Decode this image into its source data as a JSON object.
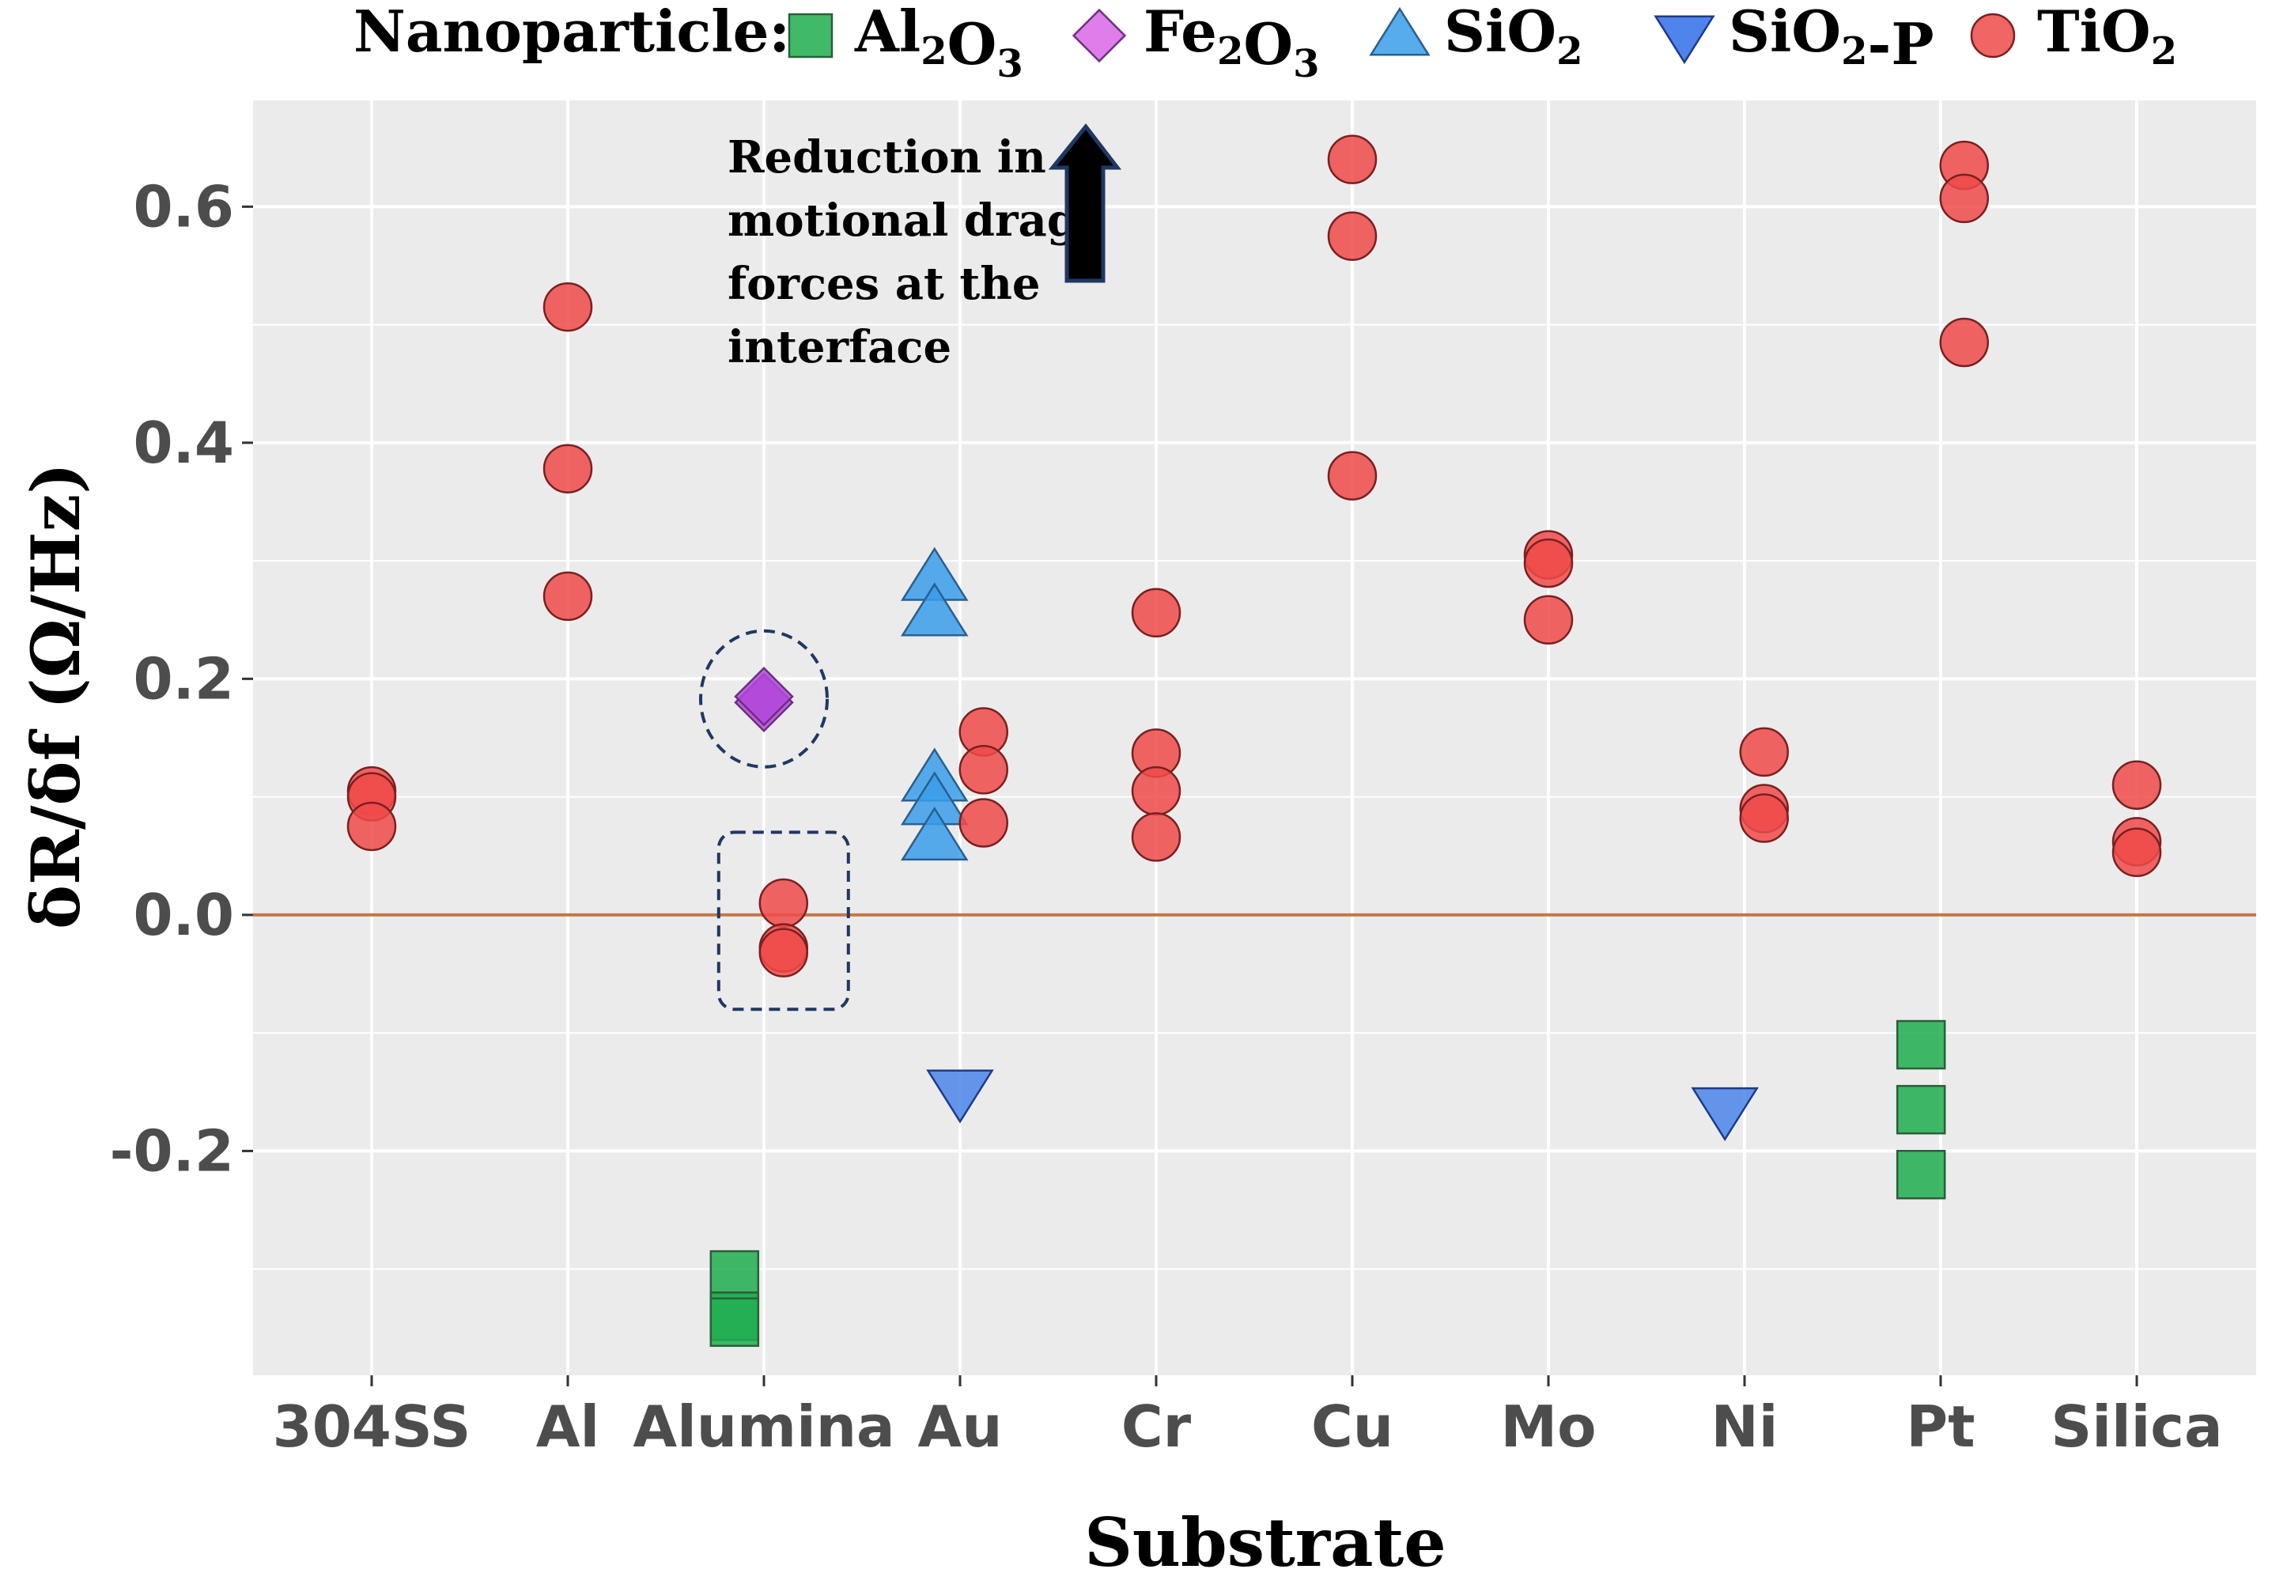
{
  "chart_data": {
    "type": "scatter",
    "title": "",
    "xlabel": "Substrate",
    "ylabel": "δR/δf  (Ω/Hz)",
    "ylim": [
      -0.39,
      0.69
    ],
    "yticks": [
      -0.2,
      0.0,
      0.2,
      0.4,
      0.6
    ],
    "ytick_labels": [
      "-0.2",
      "0.0",
      "0.2",
      "0.4",
      "0.6"
    ],
    "categories": [
      "304SS",
      "Al",
      "Alumina",
      "Au",
      "Cr",
      "Cu",
      "Mo",
      "Ni",
      "Pt",
      "Silica"
    ],
    "grid": true,
    "reference_line_y": 0.0,
    "legend": {
      "title": "Nanoparticle:",
      "position": "top",
      "entries": [
        {
          "name": "Al2O3",
          "base": "Al",
          "sub1": "2",
          "mid": "O",
          "sub2": "3",
          "tail": "",
          "shape": "square",
          "color": "#1fae4f"
        },
        {
          "name": "Fe2O3",
          "base": "Fe",
          "sub1": "2",
          "mid": "O",
          "sub2": "3",
          "tail": "",
          "shape": "diamond",
          "color": "#d966e8"
        },
        {
          "name": "SiO2",
          "base": "SiO",
          "sub1": "2",
          "mid": "",
          "sub2": "",
          "tail": "",
          "shape": "triangle-up",
          "color": "#3a9eea"
        },
        {
          "name": "SiO2-P",
          "base": "SiO",
          "sub1": "2",
          "mid": "",
          "sub2": "",
          "tail": "-P",
          "shape": "triangle-down",
          "color": "#2f6fe8"
        },
        {
          "name": "TiO2",
          "base": "TiO",
          "sub1": "2",
          "mid": "",
          "sub2": "",
          "tail": "",
          "shape": "circle",
          "color": "#f04a4a"
        }
      ]
    },
    "series": [
      {
        "name": "Al2O3",
        "shape": "square",
        "color": "#1fae4f",
        "points": [
          {
            "x": "Alumina",
            "offset": -0.15,
            "y": -0.305
          },
          {
            "x": "Alumina",
            "offset": -0.15,
            "y": -0.34
          },
          {
            "x": "Alumina",
            "offset": -0.15,
            "y": -0.345
          },
          {
            "x": "Pt",
            "offset": -0.1,
            "y": -0.11
          },
          {
            "x": "Pt",
            "offset": -0.1,
            "y": -0.165
          },
          {
            "x": "Pt",
            "offset": -0.1,
            "y": -0.22
          }
        ]
      },
      {
        "name": "Fe2O3",
        "shape": "diamond",
        "color": "#b347d9",
        "points": [
          {
            "x": "Alumina",
            "offset": 0.0,
            "y": 0.18
          },
          {
            "x": "Alumina",
            "offset": 0.0,
            "y": 0.185
          }
        ]
      },
      {
        "name": "SiO2",
        "shape": "triangle-up",
        "color": "#3a9eea",
        "points": [
          {
            "x": "Au",
            "offset": -0.13,
            "y": 0.285
          },
          {
            "x": "Au",
            "offset": -0.13,
            "y": 0.255
          },
          {
            "x": "Au",
            "offset": -0.13,
            "y": 0.115
          },
          {
            "x": "Au",
            "offset": -0.13,
            "y": 0.095
          },
          {
            "x": "Au",
            "offset": -0.13,
            "y": 0.065
          }
        ]
      },
      {
        "name": "SiO2-P",
        "shape": "triangle-down",
        "color": "#4a86ea",
        "points": [
          {
            "x": "Au",
            "offset": 0.0,
            "y": -0.15
          },
          {
            "x": "Ni",
            "offset": -0.1,
            "y": -0.165
          }
        ]
      },
      {
        "name": "TiO2",
        "shape": "circle",
        "color": "#f04a4a",
        "points": [
          {
            "x": "304SS",
            "offset": 0.0,
            "y": 0.105
          },
          {
            "x": "304SS",
            "offset": 0.0,
            "y": 0.1
          },
          {
            "x": "304SS",
            "offset": 0.0,
            "y": 0.075
          },
          {
            "x": "Al",
            "offset": 0.0,
            "y": 0.515
          },
          {
            "x": "Al",
            "offset": 0.0,
            "y": 0.378
          },
          {
            "x": "Al",
            "offset": 0.0,
            "y": 0.27
          },
          {
            "x": "Alumina",
            "offset": 0.1,
            "y": 0.01
          },
          {
            "x": "Alumina",
            "offset": 0.1,
            "y": -0.028
          },
          {
            "x": "Alumina",
            "offset": 0.1,
            "y": -0.032
          },
          {
            "x": "Au",
            "offset": 0.12,
            "y": 0.155
          },
          {
            "x": "Au",
            "offset": 0.12,
            "y": 0.123
          },
          {
            "x": "Au",
            "offset": 0.12,
            "y": 0.078
          },
          {
            "x": "Cr",
            "offset": 0.0,
            "y": 0.256
          },
          {
            "x": "Cr",
            "offset": 0.0,
            "y": 0.137
          },
          {
            "x": "Cr",
            "offset": 0.0,
            "y": 0.105
          },
          {
            "x": "Cr",
            "offset": 0.0,
            "y": 0.066
          },
          {
            "x": "Cu",
            "offset": 0.0,
            "y": 0.64
          },
          {
            "x": "Cu",
            "offset": 0.0,
            "y": 0.575
          },
          {
            "x": "Cu",
            "offset": 0.0,
            "y": 0.372
          },
          {
            "x": "Mo",
            "offset": 0.0,
            "y": 0.305
          },
          {
            "x": "Mo",
            "offset": 0.0,
            "y": 0.298
          },
          {
            "x": "Mo",
            "offset": 0.0,
            "y": 0.25
          },
          {
            "x": "Ni",
            "offset": 0.1,
            "y": 0.138
          },
          {
            "x": "Ni",
            "offset": 0.1,
            "y": 0.09
          },
          {
            "x": "Ni",
            "offset": 0.1,
            "y": 0.082
          },
          {
            "x": "Pt",
            "offset": 0.12,
            "y": 0.635
          },
          {
            "x": "Pt",
            "offset": 0.12,
            "y": 0.607
          },
          {
            "x": "Pt",
            "offset": 0.12,
            "y": 0.485
          },
          {
            "x": "Silica",
            "offset": 0.0,
            "y": 0.11
          },
          {
            "x": "Silica",
            "offset": 0.0,
            "y": 0.062
          },
          {
            "x": "Silica",
            "offset": 0.0,
            "y": 0.053
          }
        ]
      }
    ],
    "annotations": {
      "arrow_text": [
        "Reduction in",
        "motional drag",
        "forces at the",
        "interface"
      ],
      "highlight_circle": {
        "x": "Alumina",
        "y": 0.183
      },
      "highlight_box": {
        "x": "Alumina",
        "y_range": [
          -0.08,
          0.07
        ]
      }
    }
  }
}
